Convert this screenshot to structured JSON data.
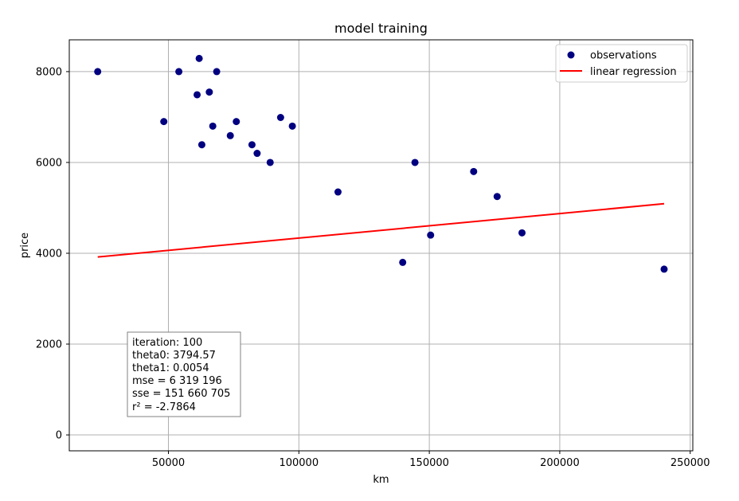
{
  "chart_data": {
    "type": "scatter",
    "title": "model training",
    "xlabel": "km",
    "ylabel": "price",
    "xlim": [
      12000,
      251000
    ],
    "ylim": [
      -350,
      8700
    ],
    "xticks": [
      50000,
      100000,
      150000,
      200000,
      250000
    ],
    "yticks": [
      0,
      2000,
      4000,
      6000,
      8000
    ],
    "grid": true,
    "legend_position": "top-right",
    "colors": {
      "observations": "#000080",
      "regression": "#ff0000"
    },
    "series": [
      {
        "name": "observations",
        "kind": "scatter",
        "x": [
          22899,
          48235,
          54000,
          61000,
          61789,
          62800,
          65674,
          67000,
          68500,
          73720,
          76025,
          82029,
          84000,
          89000,
          93000,
          97500,
          115000,
          139800,
          144500,
          150500,
          167000,
          176000,
          185530,
          240000
        ],
        "y": [
          8000,
          6900,
          8000,
          7490,
          8290,
          6390,
          7550,
          6800,
          8000,
          6590,
          6900,
          6390,
          6200,
          6000,
          6990,
          6800,
          5350,
          3800,
          6000,
          4400,
          5800,
          5250,
          4450,
          3650
        ]
      },
      {
        "name": "linear regression",
        "kind": "line",
        "x": [
          22899,
          240000
        ],
        "y": [
          3918.23,
          5090.58
        ]
      }
    ],
    "annotation": [
      "iteration: 100",
      "theta0: 3794.57",
      "theta1: 0.0054",
      "mse = 6 319 196",
      "sse = 151 660 705",
      "r² =  -2.7864"
    ]
  }
}
